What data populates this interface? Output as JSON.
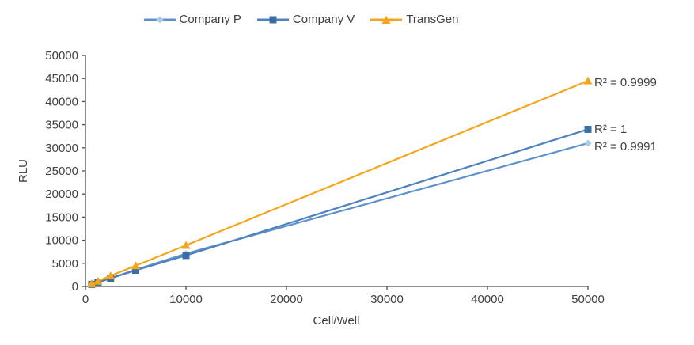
{
  "chart_data": {
    "type": "line",
    "title": "",
    "xlabel": "Cell/Well",
    "ylabel": "RLU",
    "xlim": [
      0,
      50000
    ],
    "ylim": [
      0,
      50000
    ],
    "x_ticks": [
      0,
      10000,
      20000,
      30000,
      40000,
      50000
    ],
    "y_ticks": [
      0,
      5000,
      10000,
      15000,
      20000,
      25000,
      30000,
      35000,
      40000,
      45000,
      50000
    ],
    "grid": false,
    "legend_position": "top",
    "axis_color": "#4d4d4d",
    "text_color": "#3f3f3f",
    "x": [
      625,
      1250,
      2500,
      5000,
      10000,
      50000
    ],
    "series": [
      {
        "name": "Company P",
        "marker": "diamond",
        "line_color": "#5e92cc",
        "marker_color": "#a9ccde",
        "values": [
          500,
          950,
          1800,
          3600,
          7100,
          31000
        ],
        "r2_label": "R² = 0.9991"
      },
      {
        "name": "Company V",
        "marker": "square",
        "line_color": "#4e82be",
        "marker_color": "#3c6ca4",
        "values": [
          450,
          880,
          1750,
          3500,
          6700,
          34000
        ],
        "r2_label": "R² = 1"
      },
      {
        "name": "TransGen",
        "marker": "triangle",
        "line_color": "#f5a51d",
        "marker_color": "#f5a51d",
        "values": [
          600,
          1150,
          2300,
          4500,
          8900,
          44500
        ],
        "r2_label": "R² = 0.9999"
      }
    ]
  }
}
